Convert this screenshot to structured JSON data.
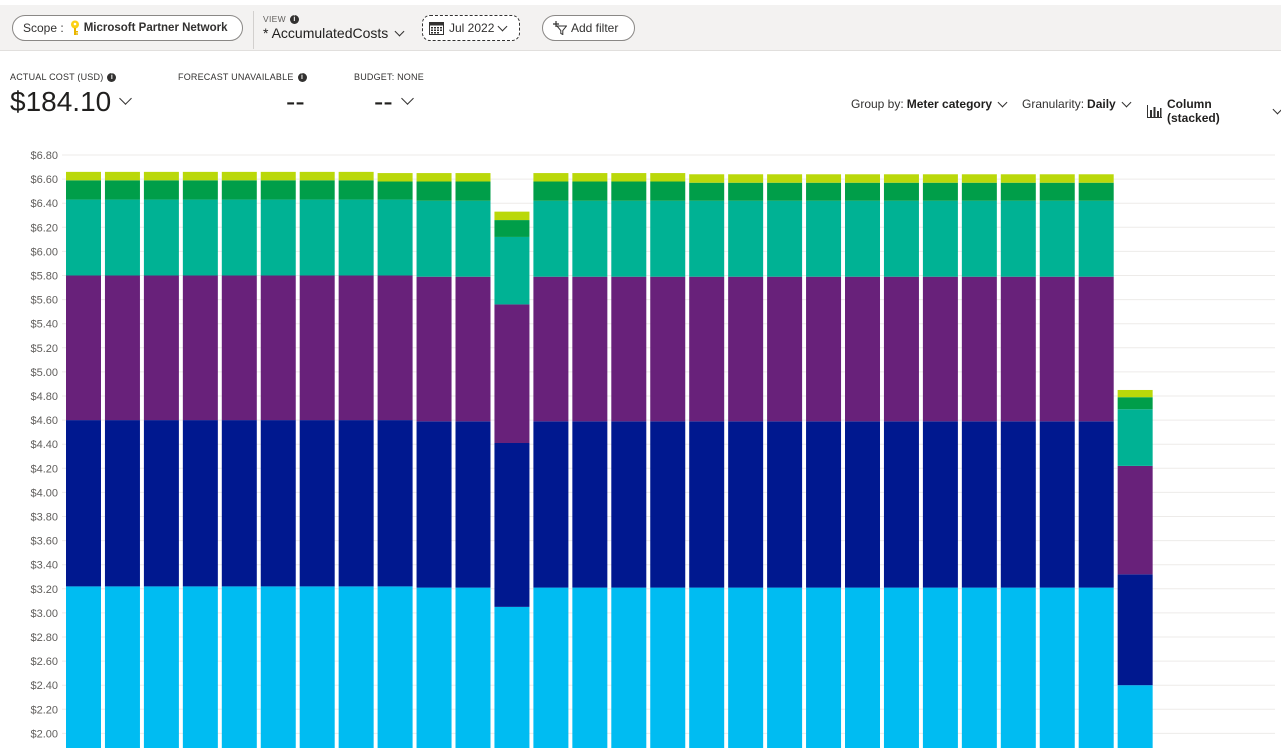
{
  "toolbar": {
    "scope_label": "Scope :",
    "scope_value": "Microsoft Partner Network",
    "view_label": "VIEW",
    "view_name": "* AccumulatedCosts",
    "date_label": "Jul 2022",
    "add_filter_label": "Add filter"
  },
  "kpis": {
    "actual_cost_label": "ACTUAL COST (USD)",
    "actual_cost_value": "$184.10",
    "forecast_label": "FORECAST UNAVAILABLE",
    "forecast_value": "--",
    "budget_label": "BUDGET: NONE",
    "budget_value": "--"
  },
  "controls": {
    "group_by_label": "Group by:",
    "group_by_value": "Meter category",
    "granularity_label": "Granularity:",
    "granularity_value": "Daily",
    "chart_type_value": "Column (stacked)"
  },
  "chart_data": {
    "type": "bar",
    "stacked": true,
    "y_tick_labels": [
      "$6.80",
      "$6.60",
      "$6.40",
      "$6.20",
      "$6.00",
      "$5.80",
      "$5.60",
      "$5.40",
      "$5.20",
      "$5.00",
      "$4.80",
      "$4.60",
      "$4.40",
      "$4.20",
      "$4.00",
      "$3.80",
      "$3.60",
      "$3.40",
      "$3.20",
      "$3.00",
      "$2.80",
      "$2.60",
      "$2.40",
      "$2.20",
      "$2.00"
    ],
    "ylim_visible": [
      2.0,
      6.8
    ],
    "grid": true,
    "series_colors": [
      "#00bcf2",
      "#00188f",
      "#68217a",
      "#00b294",
      "#009e49",
      "#bad80a"
    ],
    "totals": [
      6.66,
      6.66,
      6.66,
      6.66,
      6.66,
      6.66,
      6.66,
      6.66,
      6.65,
      6.65,
      6.65,
      6.34,
      6.65,
      6.65,
      6.65,
      6.65,
      6.64,
      6.64,
      6.64,
      6.64,
      6.64,
      6.64,
      6.64,
      6.64,
      6.64,
      6.64,
      6.64,
      4.86
    ],
    "series": [
      {
        "values": [
          3.22,
          3.22,
          3.22,
          3.22,
          3.22,
          3.22,
          3.22,
          3.22,
          3.22,
          3.21,
          3.21,
          3.05,
          3.21,
          3.21,
          3.21,
          3.21,
          3.21,
          3.21,
          3.21,
          3.21,
          3.21,
          3.21,
          3.21,
          3.21,
          3.21,
          3.21,
          3.21,
          2.4
        ]
      },
      {
        "values": [
          1.38,
          1.38,
          1.38,
          1.38,
          1.38,
          1.38,
          1.38,
          1.38,
          1.38,
          1.38,
          1.38,
          1.36,
          1.38,
          1.38,
          1.38,
          1.38,
          1.38,
          1.38,
          1.38,
          1.38,
          1.38,
          1.38,
          1.38,
          1.38,
          1.38,
          1.38,
          1.38,
          0.92
        ]
      },
      {
        "values": [
          1.2,
          1.2,
          1.2,
          1.2,
          1.2,
          1.2,
          1.2,
          1.2,
          1.2,
          1.2,
          1.2,
          1.15,
          1.2,
          1.2,
          1.2,
          1.2,
          1.2,
          1.2,
          1.2,
          1.2,
          1.2,
          1.2,
          1.2,
          1.2,
          1.2,
          1.2,
          1.2,
          0.9
        ]
      },
      {
        "values": [
          0.63,
          0.63,
          0.63,
          0.63,
          0.63,
          0.63,
          0.63,
          0.63,
          0.63,
          0.63,
          0.63,
          0.56,
          0.63,
          0.63,
          0.63,
          0.63,
          0.63,
          0.63,
          0.63,
          0.63,
          0.63,
          0.63,
          0.63,
          0.63,
          0.63,
          0.63,
          0.63,
          0.47
        ]
      },
      {
        "values": [
          0.16,
          0.16,
          0.16,
          0.16,
          0.16,
          0.16,
          0.16,
          0.16,
          0.15,
          0.16,
          0.16,
          0.14,
          0.16,
          0.16,
          0.16,
          0.16,
          0.15,
          0.15,
          0.15,
          0.15,
          0.15,
          0.15,
          0.15,
          0.15,
          0.15,
          0.15,
          0.15,
          0.1
        ]
      },
      {
        "values": [
          0.07,
          0.07,
          0.07,
          0.07,
          0.07,
          0.07,
          0.07,
          0.07,
          0.07,
          0.07,
          0.07,
          0.07,
          0.07,
          0.07,
          0.07,
          0.07,
          0.07,
          0.07,
          0.07,
          0.07,
          0.07,
          0.07,
          0.07,
          0.07,
          0.07,
          0.07,
          0.07,
          0.06
        ]
      }
    ]
  }
}
